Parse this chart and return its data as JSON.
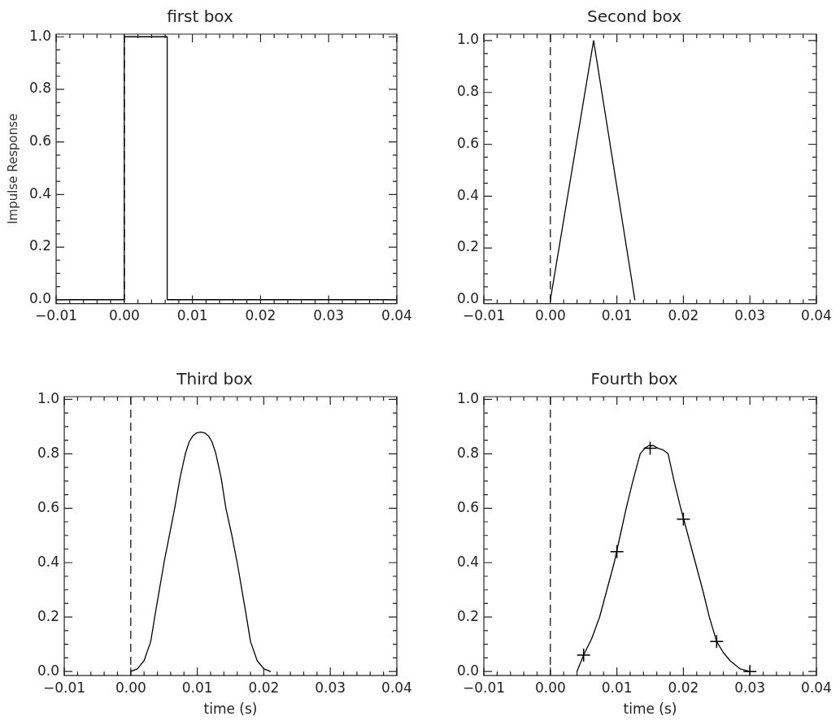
{
  "chart_data": [
    {
      "type": "line",
      "title": "first box",
      "ylabel": "Impulse Response",
      "xlim": [
        -0.01,
        0.04
      ],
      "ylim": [
        -0.015,
        1.01
      ],
      "xticks": [
        {
          "value": -0.01,
          "label": "−0.01"
        },
        {
          "value": 0,
          "label": "0.00"
        },
        {
          "value": 0.01,
          "label": "0.01"
        },
        {
          "value": 0.02,
          "label": "0.02"
        },
        {
          "value": 0.03,
          "label": "0.03"
        },
        {
          "value": 0.04,
          "label": "0.04"
        }
      ],
      "yticks": [
        {
          "value": 0,
          "label": "0.0"
        },
        {
          "value": 0.2,
          "label": "0.2"
        },
        {
          "value": 0.4,
          "label": "0.4"
        },
        {
          "value": 0.6,
          "label": "0.6"
        },
        {
          "value": 0.8,
          "label": "0.8"
        },
        {
          "value": 1,
          "label": "1.0"
        }
      ],
      "ref_lines": [
        {
          "axis": "x",
          "value": 0,
          "line_style": "dashed",
          "color": "#000000"
        }
      ],
      "series": [
        {
          "color": "#000000",
          "x": [
            -0.01,
            0,
            0,
            0.0063,
            0.0063,
            0.04
          ],
          "values": [
            0,
            0,
            1,
            1,
            0,
            0
          ]
        }
      ]
    },
    {
      "type": "line",
      "title": "Second box",
      "xlim": [
        -0.01,
        0.04
      ],
      "ylim": [
        -0.015,
        1.025
      ],
      "xticks": [
        {
          "value": -0.01,
          "label": "−0.01"
        },
        {
          "value": 0,
          "label": "0.00"
        },
        {
          "value": 0.01,
          "label": "0.01"
        },
        {
          "value": 0.02,
          "label": "0.02"
        },
        {
          "value": 0.03,
          "label": "0.03"
        },
        {
          "value": 0.04,
          "label": "0.04"
        }
      ],
      "yticks": [
        {
          "value": 0,
          "label": "0.0"
        },
        {
          "value": 0.2,
          "label": "0.2"
        },
        {
          "value": 0.4,
          "label": "0.4"
        },
        {
          "value": 0.6,
          "label": "0.6"
        },
        {
          "value": 0.8,
          "label": "0.8"
        },
        {
          "value": 1,
          "label": "1.0"
        }
      ],
      "ref_lines": [
        {
          "axis": "x",
          "value": 0,
          "line_style": "dashed",
          "color": "#000000"
        }
      ],
      "series": [
        {
          "color": "#000000",
          "x": [
            0,
            0.0065,
            0.0127
          ],
          "values": [
            0,
            1,
            0
          ]
        }
      ]
    },
    {
      "type": "line",
      "title": "Third box",
      "xlabel": "time (s)",
      "xlim": [
        -0.01,
        0.04
      ],
      "ylim": [
        -0.015,
        1.01
      ],
      "xticks": [
        {
          "value": -0.01,
          "label": "−0.01"
        },
        {
          "value": 0,
          "label": "0.00"
        },
        {
          "value": 0.01,
          "label": "0.01"
        },
        {
          "value": 0.02,
          "label": "0.02"
        },
        {
          "value": 0.03,
          "label": "0.03"
        },
        {
          "value": 0.04,
          "label": "0.04"
        }
      ],
      "yticks": [
        {
          "value": 0,
          "label": "0.0"
        },
        {
          "value": 0.2,
          "label": "0.2"
        },
        {
          "value": 0.4,
          "label": "0.4"
        },
        {
          "value": 0.6,
          "label": "0.6"
        },
        {
          "value": 0.8,
          "label": "0.8"
        },
        {
          "value": 1,
          "label": "1.0"
        }
      ],
      "ref_lines": [
        {
          "axis": "x",
          "value": 0,
          "line_style": "dashed",
          "color": "#000000"
        }
      ],
      "series": [
        {
          "color": "#000000",
          "x": [
            0,
            0.001,
            0.002,
            0.003,
            0.0036,
            0.0043,
            0.005,
            0.0058,
            0.0066,
            0.0074,
            0.0082,
            0.0088,
            0.0093,
            0.0099,
            0.0105,
            0.0111,
            0.0117,
            0.0122,
            0.0128,
            0.0136,
            0.0143,
            0.0152,
            0.016,
            0.0167,
            0.0174,
            0.018,
            0.019,
            0.02,
            0.021
          ],
          "values": [
            0,
            0.01,
            0.04,
            0.11,
            0.2,
            0.3,
            0.4,
            0.5,
            0.6,
            0.71,
            0.8,
            0.845,
            0.865,
            0.877,
            0.88,
            0.877,
            0.865,
            0.845,
            0.8,
            0.71,
            0.6,
            0.5,
            0.4,
            0.3,
            0.2,
            0.11,
            0.04,
            0.01,
            0
          ]
        }
      ]
    },
    {
      "type": "line",
      "title": "Fourth box",
      "xlabel": "time (s)",
      "xlim": [
        -0.01,
        0.04
      ],
      "ylim": [
        -0.015,
        1.01
      ],
      "xticks": [
        {
          "value": -0.01,
          "label": "−0.01"
        },
        {
          "value": 0,
          "label": "0.00"
        },
        {
          "value": 0.01,
          "label": "0.01"
        },
        {
          "value": 0.02,
          "label": "0.02"
        },
        {
          "value": 0.03,
          "label": "0.03"
        },
        {
          "value": 0.04,
          "label": "0.04"
        }
      ],
      "yticks": [
        {
          "value": 0,
          "label": "0.0"
        },
        {
          "value": 0.2,
          "label": "0.2"
        },
        {
          "value": 0.4,
          "label": "0.4"
        },
        {
          "value": 0.6,
          "label": "0.6"
        },
        {
          "value": 0.8,
          "label": "0.8"
        },
        {
          "value": 1,
          "label": "1.0"
        }
      ],
      "ref_lines": [
        {
          "axis": "x",
          "value": 0,
          "line_style": "dashed",
          "color": "#000000"
        }
      ],
      "series": [
        {
          "color": "#000000",
          "x": [
            0.004,
            0.005,
            0.0062,
            0.0074,
            0.0085,
            0.0096,
            0.0105,
            0.0114,
            0.0124,
            0.0135,
            0.0142,
            0.0148,
            0.0155,
            0.0162,
            0.0169,
            0.0177,
            0.0186,
            0.0196,
            0.0207,
            0.0218,
            0.0229,
            0.0239,
            0.025,
            0.026,
            0.027,
            0.0285,
            0.03
          ],
          "values": [
            0,
            0.06,
            0.12,
            0.2,
            0.3,
            0.4,
            0.5,
            0.6,
            0.7,
            0.8,
            0.82,
            0.83,
            0.83,
            0.82,
            0.815,
            0.8,
            0.7,
            0.6,
            0.5,
            0.4,
            0.3,
            0.2,
            0.11,
            0.07,
            0.04,
            0.01,
            0
          ]
        },
        {
          "type": "scatter",
          "marker": "cross",
          "color": "#000000",
          "x": [
            0.005,
            0.01,
            0.015,
            0.02,
            0.025,
            0.03
          ],
          "values": [
            0.06,
            0.44,
            0.82,
            0.56,
            0.11,
            0
          ]
        }
      ]
    }
  ]
}
